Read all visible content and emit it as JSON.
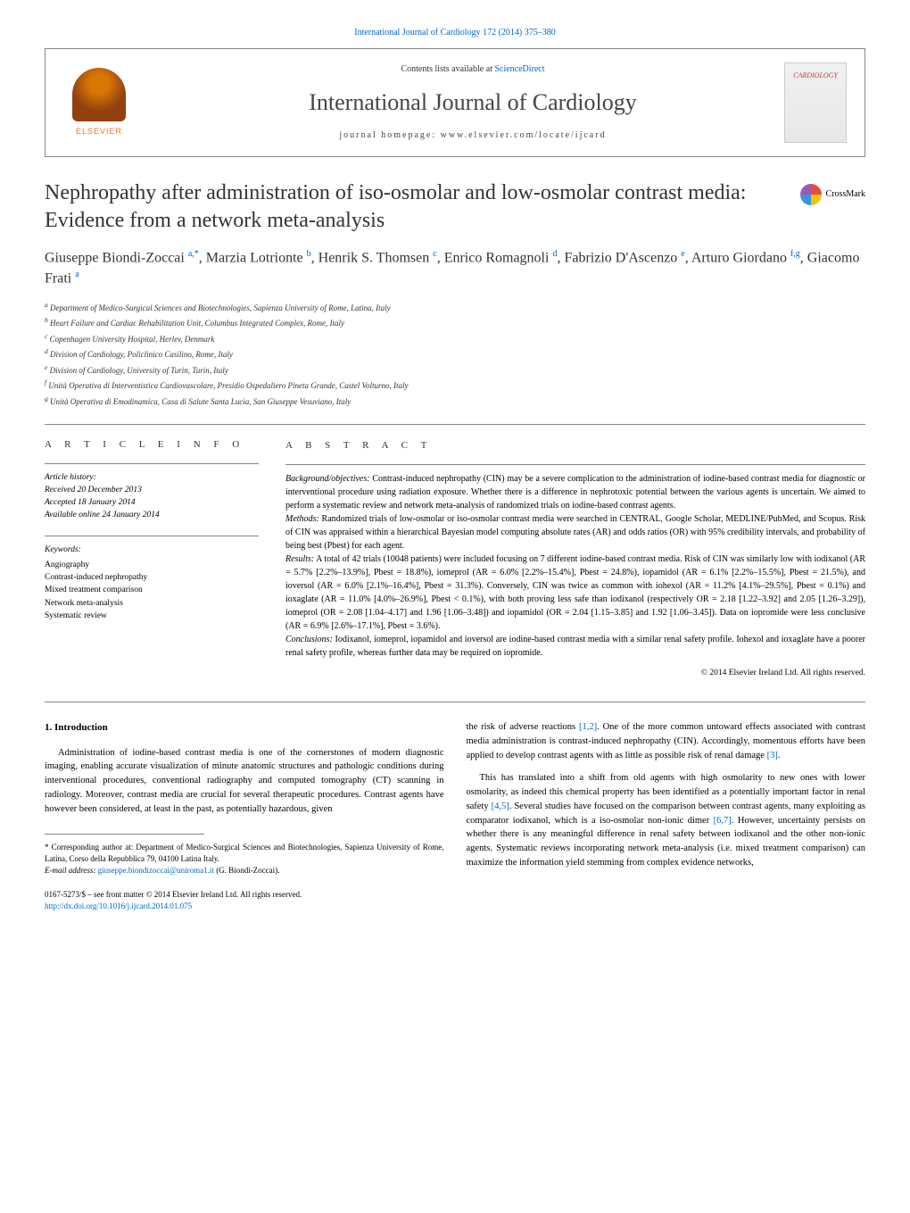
{
  "top_link": "International Journal of Cardiology 172 (2014) 375–380",
  "header": {
    "contents_prefix": "Contents lists available at ",
    "contents_link": "ScienceDirect",
    "journal_name": "International Journal of Cardiology",
    "homepage": "journal homepage: www.elsevier.com/locate/ijcard",
    "elsevier_label": "ELSEVIER",
    "cover_text": "CARDIOLOGY"
  },
  "crossmark_label": "CrossMark",
  "title": "Nephropathy after administration of iso-osmolar and low-osmolar contrast media: Evidence from a network meta-analysis",
  "authors_html": "Giuseppe Biondi-Zoccai <sup>a,*</sup>, Marzia Lotrionte <sup>b</sup>, Henrik S. Thomsen <sup>c</sup>, Enrico Romagnoli <sup>d</sup>, Fabrizio D'Ascenzo <sup>e</sup>, Arturo Giordano <sup>f,g</sup>, Giacomo Frati <sup>a</sup>",
  "affiliations": [
    "a Department of Medico-Surgical Sciences and Biotechnologies, Sapienza University of Rome, Latina, Italy",
    "b Heart Failure and Cardiac Rehabilitation Unit, Columbus Integrated Complex, Rome, Italy",
    "c Copenhagen University Hospital, Herlev, Denmark",
    "d Division of Cardiology, Policlinico Casilino, Rome, Italy",
    "e Division of Cardiology, University of Turin, Turin, Italy",
    "f Unità Operativa di Interventistica Cardiovascolare, Presidio Ospedaliero Pineta Grande, Castel Volturno, Italy",
    "g Unità Operativa di Emodinamica, Casa di Salute Santa Lucia, San Giuseppe Vesuviano, Italy"
  ],
  "article_info_label": "A R T I C L E   I N F O",
  "abstract_label": "A B S T R A C T",
  "history": {
    "label": "Article history:",
    "received": "Received 20 December 2013",
    "accepted": "Accepted 18 January 2014",
    "online": "Available online 24 January 2014"
  },
  "keywords": {
    "label": "Keywords:",
    "items": [
      "Angiography",
      "Contrast-induced nephropathy",
      "Mixed treatment comparison",
      "Network meta-analysis",
      "Systematic review"
    ]
  },
  "abstract": {
    "background_label": "Background/objectives:",
    "background": " Contrast-induced nephropathy (CIN) may be a severe complication to the administration of iodine-based contrast media for diagnostic or interventional procedure using radiation exposure. Whether there is a difference in nephrotoxic potential between the various agents is uncertain. We aimed to perform a systematic review and network meta-analysis of randomized trials on iodine-based contrast agents.",
    "methods_label": "Methods:",
    "methods": " Randomized trials of low-osmolar or iso-osmolar contrast media were searched in CENTRAL, Google Scholar, MEDLINE/PubMed, and Scopus. Risk of CIN was appraised within a hierarchical Bayesian model computing absolute rates (AR) and odds ratios (OR) with 95% credibility intervals, and probability of being best (Pbest) for each agent.",
    "results_label": "Results:",
    "results": " A total of 42 trials (10048 patients) were included focusing on 7 different iodine-based contrast media. Risk of CIN was similarly low with iodixanol (AR = 5.7% [2.2%–13.9%], Pbest = 18.8%), iomeprol (AR = 6.0% [2.2%–15.4%], Pbest = 24.8%), iopamidol (AR = 6.1% [2.2%–15.5%], Pbest = 21.5%), and ioversol (AR = 6.0% [2.1%–16.4%], Pbest = 31.3%). Conversely, CIN was twice as common with iohexol (AR = 11.2% [4.1%–29.5%], Pbest = 0.1%) and ioxaglate (AR = 11.0% [4.0%–26.9%], Pbest < 0.1%), with both proving less safe than iodixanol (respectively OR = 2.18 [1.22–3.92] and 2.05 [1.26–3.29]), iomeprol (OR = 2.08 [1.04–4.17] and 1.96 [1.06–3.48]) and iopamidol (OR = 2.04 [1.15–3.85] and 1.92 [1.06–3.45]). Data on iopromide were less conclusive (AR = 6.9% [2.6%–17.1%], Pbest = 3.6%).",
    "conclusions_label": "Conclusions:",
    "conclusions": " Iodixanol, iomeprol, iopamidol and ioversol are iodine-based contrast media with a similar renal safety profile. Iohexol and ioxaglate have a poorer renal safety profile, whereas further data may be required on iopromide.",
    "copyright": "© 2014 Elsevier Ireland Ltd. All rights reserved."
  },
  "intro": {
    "heading": "1. Introduction",
    "p1": "Administration of iodine-based contrast media is one of the cornerstones of modern diagnostic imaging, enabling accurate visualization of minute anatomic structures and pathologic conditions during interventional procedures, conventional radiography and computed tomography (CT) scanning in radiology. Moreover, contrast media are crucial for several therapeutic procedures. Contrast agents have however been considered, at least in the past, as potentially hazardous, given",
    "p2_pre": "the risk of adverse reactions ",
    "p2_ref1": "[1,2]",
    "p2_mid": ". One of the more common untoward effects associated with contrast media administration is contrast-induced nephropathy (CIN). Accordingly, momentous efforts have been applied to develop contrast agents with as little as possible risk of renal damage ",
    "p2_ref2": "[3]",
    "p2_end": ".",
    "p3_pre": "This has translated into a shift from old agents with high osmolarity to new ones with lower osmolarity, as indeed this chemical property has been identified as a potentially important factor in renal safety ",
    "p3_ref1": "[4,5]",
    "p3_mid": ". Several studies have focused on the comparison between contrast agents, many exploiting as comparator iodixanol, which is a iso-osmolar non-ionic dimer ",
    "p3_ref2": "[6,7]",
    "p3_end": ". However, uncertainty persists on whether there is any meaningful difference in renal safety between iodixanol and the other non-ionic agents. Systematic reviews incorporating network meta-analysis (i.e. mixed treatment comparison) can maximize the information yield stemming from complex evidence networks,"
  },
  "footnote": {
    "corr": "* Corresponding author at: Department of Medico-Surgical Sciences and Biotechnologies, Sapienza University of Rome, Latina, Corso della Repubblica 79, 04100 Latina Italy.",
    "email_label": "E-mail address: ",
    "email": "giuseppe.biondizoccai@uniroma1.it",
    "email_suffix": " (G. Biondi-Zoccai)."
  },
  "bottom": {
    "issn": "0167-5273/$ – see front matter © 2014 Elsevier Ireland Ltd. All rights reserved.",
    "doi": "http://dx.doi.org/10.1016/j.ijcard.2014.01.075"
  }
}
